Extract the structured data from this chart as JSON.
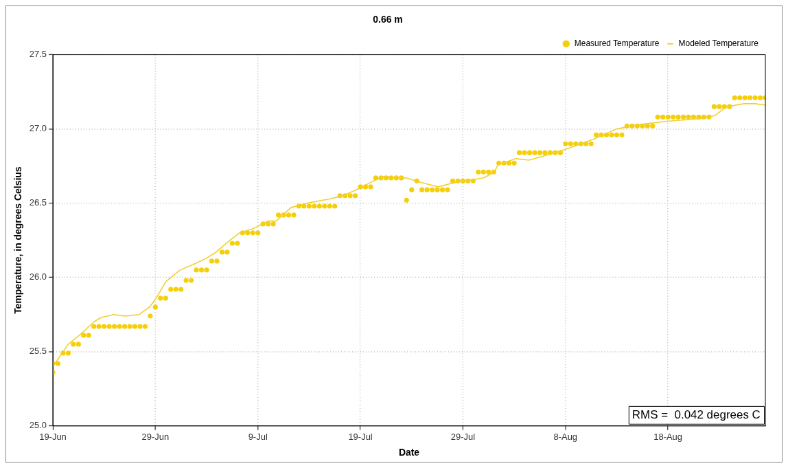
{
  "chart_data": {
    "type": "scatter",
    "title": "0.66 m",
    "xlabel": "Date",
    "ylabel": "Temperature, in degrees Celsius",
    "xlim": [
      "--06-19",
      "--08-27T12:00"
    ],
    "xticks": [
      {
        "value": "--06-19",
        "label": "19-Jun"
      },
      {
        "value": "--06-29",
        "label": "29-Jun"
      },
      {
        "value": "--07-09",
        "label": "9-Jul"
      },
      {
        "value": "--07-19",
        "label": "19-Jul"
      },
      {
        "value": "--07-29",
        "label": "29-Jul"
      },
      {
        "value": "--08-08",
        "label": "8-Aug"
      },
      {
        "value": "--08-18",
        "label": "18-Aug"
      }
    ],
    "ylim": [
      25,
      27.5
    ],
    "yticks": [
      {
        "value": 25,
        "label": "25.0"
      },
      {
        "value": 25.5,
        "label": "25.5"
      },
      {
        "value": 26,
        "label": "26.0"
      },
      {
        "value": 26.5,
        "label": "26.5"
      },
      {
        "value": 27,
        "label": "27.0"
      },
      {
        "value": 27.5,
        "label": "27.5"
      }
    ],
    "grid": true,
    "legend": "top right",
    "annotations": [
      "RMS =  0.042 degrees C"
    ],
    "series": [
      {
        "name": "Measured Temperature",
        "type": "scatter",
        "marker": "circle",
        "color": "#f5cf0a",
        "x": [
          "--06-19",
          "--06-19",
          "--06-19T12:00",
          "--06-20",
          "--06-20T12:00",
          "--06-21",
          "--06-21T12:00",
          "--06-22",
          "--06-22T12:00",
          "--06-23",
          "--06-23T12:00",
          "--06-24",
          "--06-24T12:00",
          "--06-25",
          "--06-25T12:00",
          "--06-26",
          "--06-26T12:00",
          "--06-27",
          "--06-27T12:00",
          "--06-28",
          "--06-28T12:00",
          "--06-29",
          "--06-29T12:00",
          "--06-30",
          "--06-30T12:00",
          "--07-01",
          "--07-01T12:00",
          "--07-02",
          "--07-02T12:00",
          "--07-03",
          "--07-03T12:00",
          "--07-04",
          "--07-04T12:00",
          "--07-05",
          "--07-05T12:00",
          "--07-06",
          "--07-06T12:00",
          "--07-07",
          "--07-07T12:00",
          "--07-08",
          "--07-08T12:00",
          "--07-09",
          "--07-09T12:00",
          "--07-10",
          "--07-10T12:00",
          "--07-11",
          "--07-11T12:00",
          "--07-12",
          "--07-12T12:00",
          "--07-13",
          "--07-13T12:00",
          "--07-14",
          "--07-14T12:00",
          "--07-15",
          "--07-15T12:00",
          "--07-16",
          "--07-16T12:00",
          "--07-17",
          "--07-17T12:00",
          "--07-18",
          "--07-18T12:00",
          "--07-19",
          "--07-19T12:00",
          "--07-20",
          "--07-20T12:00",
          "--07-21",
          "--07-21T12:00",
          "--07-22",
          "--07-22T12:00",
          "--07-23",
          "--07-23T12:00",
          "--07-24",
          "--07-24T12:00",
          "--07-25",
          "--07-25T12:00",
          "--07-26",
          "--07-26T12:00",
          "--07-27",
          "--07-27T12:00",
          "--07-28",
          "--07-28T12:00",
          "--07-29",
          "--07-29T12:00",
          "--07-30",
          "--07-30T12:00",
          "--07-31",
          "--07-31T12:00",
          "--08-01",
          "--08-01T12:00",
          "--08-02",
          "--08-02T12:00",
          "--08-03",
          "--08-03T12:00",
          "--08-04",
          "--08-04T12:00",
          "--08-05",
          "--08-05T12:00",
          "--08-06",
          "--08-06T12:00",
          "--08-07",
          "--08-07T12:00",
          "--08-08",
          "--08-08T12:00",
          "--08-09",
          "--08-09T12:00",
          "--08-10",
          "--08-10T12:00",
          "--08-11",
          "--08-11T12:00",
          "--08-12",
          "--08-12T12:00",
          "--08-13",
          "--08-13T12:00",
          "--08-14",
          "--08-14T12:00",
          "--08-15",
          "--08-15T12:00",
          "--08-16",
          "--08-16T12:00",
          "--08-17",
          "--08-17T12:00",
          "--08-18",
          "--08-18T12:00",
          "--08-19",
          "--08-19T12:00",
          "--08-20",
          "--08-20T12:00",
          "--08-21",
          "--08-21T12:00",
          "--08-22",
          "--08-22T12:00",
          "--08-23",
          "--08-23T12:00",
          "--08-24",
          "--08-24T12:00",
          "--08-25",
          "--08-25T12:00",
          "--08-26",
          "--08-26T12:00",
          "--08-27",
          "--08-27T12:00"
        ],
        "values": [
          25.36,
          25.42,
          25.42,
          25.49,
          25.49,
          25.55,
          25.55,
          25.61,
          25.61,
          25.67,
          25.67,
          25.67,
          25.67,
          25.67,
          25.67,
          25.67,
          25.67,
          25.67,
          25.67,
          25.67,
          25.74,
          25.8,
          25.86,
          25.86,
          25.92,
          25.92,
          25.92,
          25.98,
          25.98,
          26.05,
          26.05,
          26.05,
          26.11,
          26.11,
          26.17,
          26.17,
          26.23,
          26.23,
          26.3,
          26.3,
          26.3,
          26.3,
          26.36,
          26.36,
          26.36,
          26.42,
          26.42,
          26.42,
          26.42,
          26.48,
          26.48,
          26.48,
          26.48,
          26.48,
          26.48,
          26.48,
          26.48,
          26.55,
          26.55,
          26.55,
          26.55,
          26.61,
          26.61,
          26.61,
          26.67,
          26.67,
          26.67,
          26.67,
          26.67,
          26.67,
          26.52,
          26.59,
          26.65,
          26.59,
          26.59,
          26.59,
          26.59,
          26.59,
          26.59,
          26.65,
          26.65,
          26.65,
          26.65,
          26.65,
          26.71,
          26.71,
          26.71,
          26.71,
          26.77,
          26.77,
          26.77,
          26.77,
          26.84,
          26.84,
          26.84,
          26.84,
          26.84,
          26.84,
          26.84,
          26.84,
          26.84,
          26.9,
          26.9,
          26.9,
          26.9,
          26.9,
          26.9,
          26.96,
          26.96,
          26.96,
          26.96,
          26.96,
          26.96,
          27.02,
          27.02,
          27.02,
          27.02,
          27.02,
          27.02,
          27.08,
          27.08,
          27.08,
          27.08,
          27.08,
          27.08,
          27.08,
          27.08,
          27.08,
          27.08,
          27.08,
          27.15,
          27.15,
          27.15,
          27.15,
          27.21,
          27.21,
          27.21,
          27.21,
          27.21,
          27.21,
          27.21
        ]
      },
      {
        "name": "Modeled Temperature",
        "type": "line",
        "marker": "none",
        "color": "#f0d030",
        "x": [
          "--06-19",
          "--06-20T12:00",
          "--06-21T14:00",
          "--06-23",
          "--06-23T17:00",
          "--06-24T22:00",
          "--06-26T02:00",
          "--06-27T10:00",
          "--06-28T10:00",
          "--06-29T02:00",
          "--06-30",
          "--07-01T10:00",
          "--07-02T19:00",
          "--07-04",
          "--07-04T22:00",
          "--07-06T02:00",
          "--07-07T05:00",
          "--07-08T14:00",
          "--07-10",
          "--07-10T19:00",
          "--07-12T05:00",
          "--07-13T19:00",
          "--07-16T02:00",
          "--07-17T07:00",
          "--07-18T22:00",
          "--07-20",
          "--07-21T05:00",
          "--07-23T12:00",
          "--07-24T22:00",
          "--07-26T14:00",
          "--07-27T17:00",
          "--07-29T02:00",
          "--07-31",
          "--08-01T02:00",
          "--08-01T10:00",
          "--08-03T05:00",
          "--08-04T10:00",
          "--08-06",
          "--08-07T22:00",
          "--08-10T17:00",
          "--08-13",
          "--08-15T07:00",
          "--08-17T17:00",
          "--08-21T05:00",
          "--08-22T14:00",
          "--08-23T17:00",
          "--08-25T10:00",
          "--08-26T12:00",
          "--08-27T12:00"
        ],
        "values": [
          25.4,
          25.55,
          25.61,
          25.7,
          25.73,
          25.75,
          25.74,
          25.75,
          25.8,
          25.86,
          25.97,
          26.05,
          26.09,
          26.13,
          26.17,
          26.24,
          26.3,
          26.33,
          26.38,
          26.38,
          26.47,
          26.5,
          26.53,
          26.55,
          26.6,
          26.64,
          26.68,
          26.67,
          26.64,
          26.61,
          26.63,
          26.65,
          26.67,
          26.71,
          26.76,
          26.8,
          26.79,
          26.82,
          26.86,
          26.93,
          27.0,
          27.03,
          27.05,
          27.07,
          27.09,
          27.15,
          27.17,
          27.17,
          27.16
        ]
      }
    ]
  }
}
